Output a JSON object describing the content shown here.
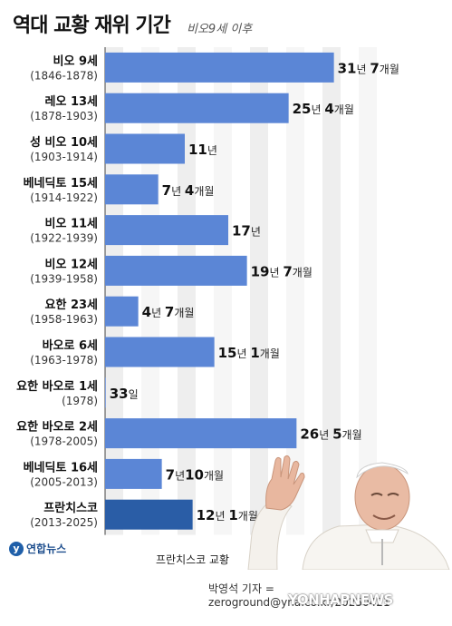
{
  "header": {
    "title": "역대 교황 재위 기간",
    "subtitle": "비오9세 이후"
  },
  "chart_data": {
    "type": "bar",
    "orientation": "horizontal",
    "title": "역대 교황 재위 기간",
    "subtitle": "비오9세 이후",
    "unit": "years",
    "categories": [
      {
        "name": "비오 9세",
        "years": "(1846-1878)"
      },
      {
        "name": "레오 13세",
        "years": "(1878-1903)"
      },
      {
        "name": "성 비오 10세",
        "years": "(1903-1914)"
      },
      {
        "name": "베네딕토 15세",
        "years": "(1914-1922)"
      },
      {
        "name": "비오 11세",
        "years": "(1922-1939)"
      },
      {
        "name": "비오 12세",
        "years": "(1939-1958)"
      },
      {
        "name": "요한 23세",
        "years": "(1958-1963)"
      },
      {
        "name": "바오로 6세",
        "years": "(1963-1978)"
      },
      {
        "name": "요한 바오로 1세",
        "years": "(1978)"
      },
      {
        "name": "요한 바오로 2세",
        "years": "(1978-2005)"
      },
      {
        "name": "베네딕토 16세",
        "years": "(2005-2013)"
      },
      {
        "name": "프란치스코",
        "years": "(2013-2025)"
      }
    ],
    "values": [
      31.58,
      25.33,
      11,
      7.33,
      17,
      19.58,
      4.58,
      15.08,
      0.09,
      26.42,
      7.83,
      12.08
    ],
    "value_labels": [
      [
        {
          "t": "31",
          "b": true
        },
        {
          "t": "년 ",
          "b": false
        },
        {
          "t": "7",
          "b": true
        },
        {
          "t": "개월",
          "b": false
        }
      ],
      [
        {
          "t": "25",
          "b": true
        },
        {
          "t": "년 ",
          "b": false
        },
        {
          "t": "4",
          "b": true
        },
        {
          "t": "개월",
          "b": false
        }
      ],
      [
        {
          "t": "11",
          "b": true
        },
        {
          "t": "년",
          "b": false
        }
      ],
      [
        {
          "t": "7",
          "b": true
        },
        {
          "t": "년 ",
          "b": false
        },
        {
          "t": "4",
          "b": true
        },
        {
          "t": "개월",
          "b": false
        }
      ],
      [
        {
          "t": "17",
          "b": true
        },
        {
          "t": "년",
          "b": false
        }
      ],
      [
        {
          "t": "19",
          "b": true
        },
        {
          "t": "년 ",
          "b": false
        },
        {
          "t": "7",
          "b": true
        },
        {
          "t": "개월",
          "b": false
        }
      ],
      [
        {
          "t": "4",
          "b": true
        },
        {
          "t": "년 ",
          "b": false
        },
        {
          "t": "7",
          "b": true
        },
        {
          "t": "개월",
          "b": false
        }
      ],
      [
        {
          "t": "15",
          "b": true
        },
        {
          "t": "년 ",
          "b": false
        },
        {
          "t": "1",
          "b": true
        },
        {
          "t": "개월",
          "b": false
        }
      ],
      [
        {
          "t": "33",
          "b": true
        },
        {
          "t": "일",
          "b": false
        }
      ],
      [
        {
          "t": "26",
          "b": true
        },
        {
          "t": "년 ",
          "b": false
        },
        {
          "t": "5",
          "b": true
        },
        {
          "t": "개월",
          "b": false
        }
      ],
      [
        {
          "t": "7",
          "b": true
        },
        {
          "t": "년",
          "b": false
        },
        {
          "t": "10",
          "b": true
        },
        {
          "t": "개월",
          "b": false
        }
      ],
      [
        {
          "t": "12",
          "b": true
        },
        {
          "t": "년 ",
          "b": false
        },
        {
          "t": "1",
          "b": true
        },
        {
          "t": "개월",
          "b": false
        }
      ]
    ],
    "highlight_index": 11,
    "bar_color": "#5b86d6",
    "highlight_color": "#2a5da6",
    "grid": true,
    "xlim": [
      0,
      35
    ]
  },
  "footer": {
    "logo_text": "연합뉴스",
    "photo_caption": "프란치스코 교황",
    "credit": "박영석 기자 = zeroground@yna.co.kr/20250421",
    "watermark": "YONHAPNEWS"
  }
}
